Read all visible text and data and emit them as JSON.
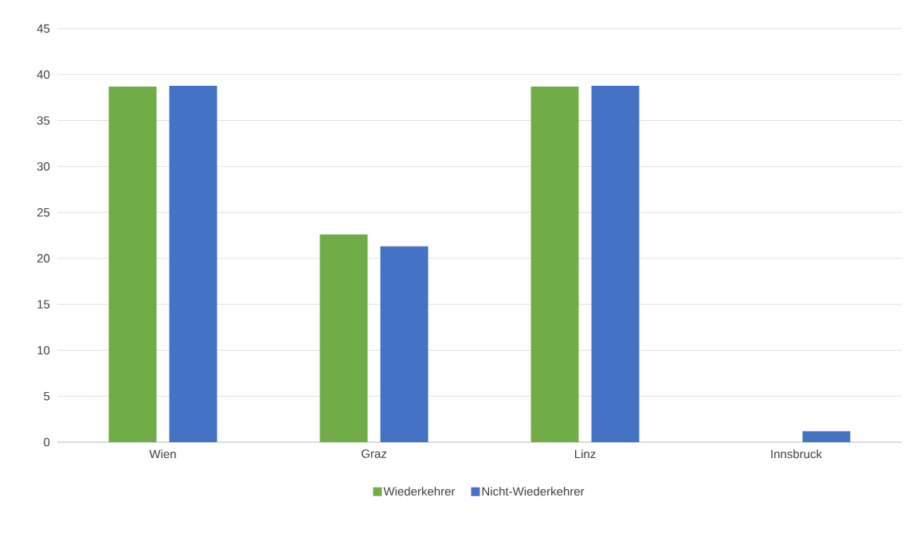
{
  "chart_data": {
    "type": "bar",
    "categories": [
      "Wien",
      "Graz",
      "Linz",
      "Innsbruck"
    ],
    "series": [
      {
        "name": "Wiederkehrer",
        "color": "#70ad47",
        "values": [
          38.7,
          22.6,
          38.7,
          0
        ]
      },
      {
        "name": "Nicht-Wiederkehrer",
        "color": "#4472c4",
        "values": [
          38.8,
          21.3,
          38.8,
          1.2
        ]
      }
    ],
    "ylim": [
      0,
      45
    ],
    "yticks": [
      0,
      5,
      10,
      15,
      20,
      25,
      30,
      35,
      40,
      45
    ],
    "grid": "y",
    "legend": "bottom"
  }
}
